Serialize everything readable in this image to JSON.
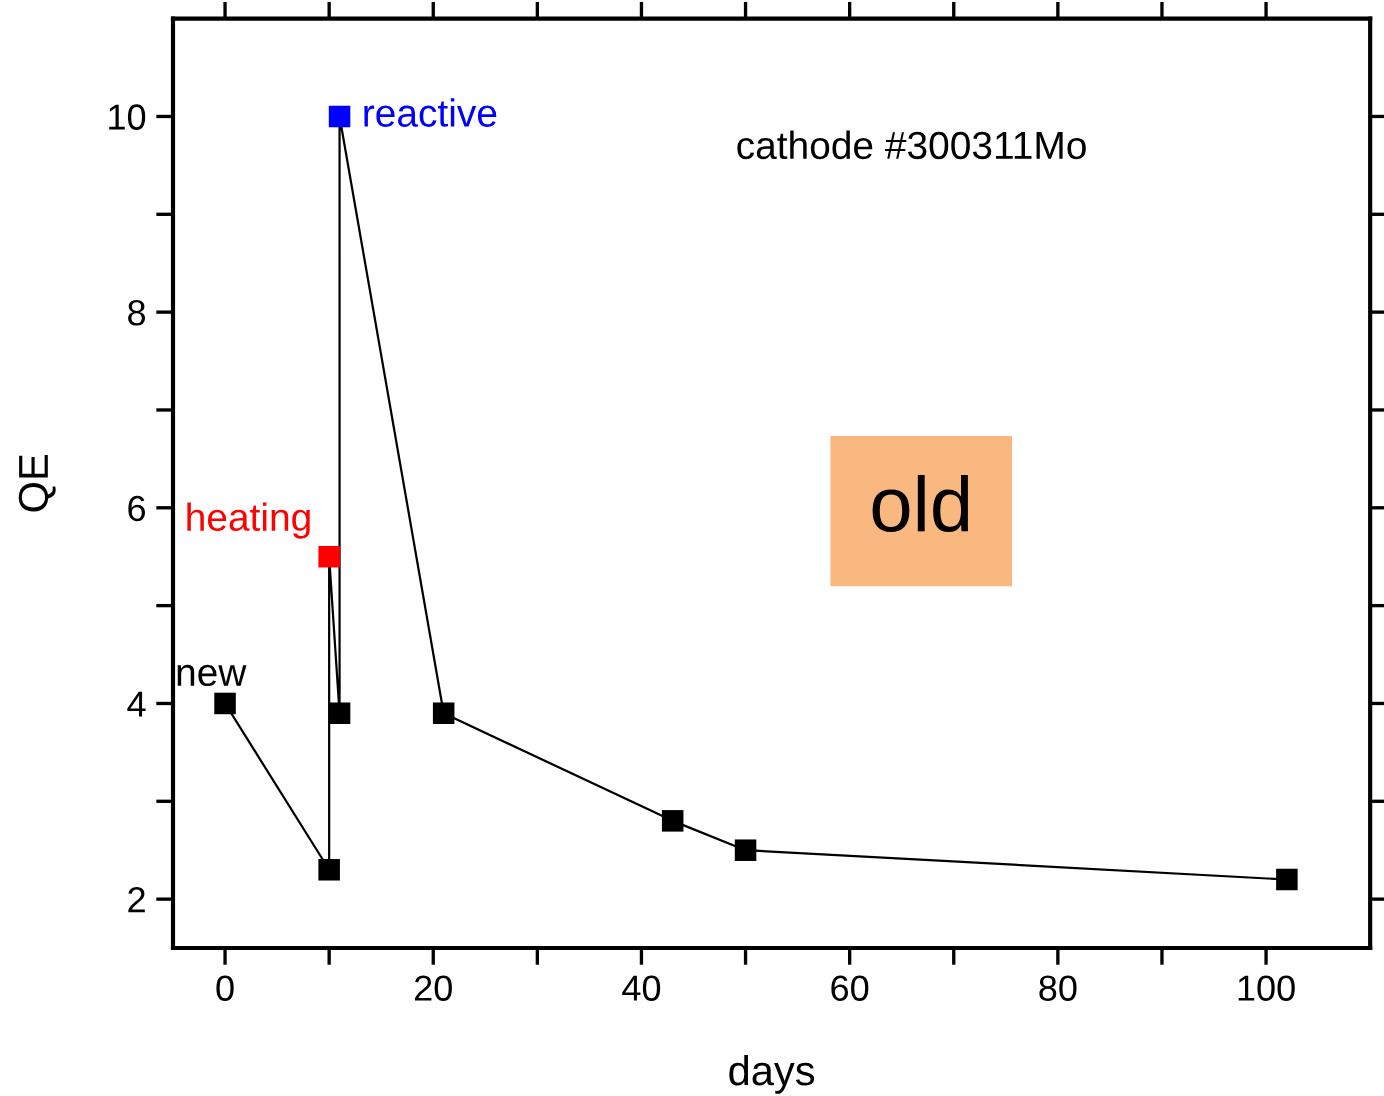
{
  "chart_data": {
    "type": "line",
    "xlabel": "days",
    "ylabel": "QE",
    "xlim": [
      -5,
      110
    ],
    "xticks": [
      0,
      {
        "value": 10,
        "label": null
      },
      20,
      {
        "value": 30,
        "label": null
      },
      40,
      {
        "value": 50,
        "label": null
      },
      60,
      {
        "value": 70,
        "label": null
      },
      80,
      {
        "value": 90,
        "label": null
      },
      100
    ],
    "ylim": [
      1.5,
      11
    ],
    "yticks": [
      2,
      {
        "value": 3,
        "label": null
      },
      4,
      {
        "value": 5,
        "label": null
      },
      6,
      {
        "value": 7,
        "label": null
      },
      8,
      {
        "value": 9,
        "label": null
      },
      10
    ],
    "marker": "square",
    "line_style": "solid",
    "grid": false,
    "legend": false,
    "series": [
      {
        "color": "#000000",
        "x": [
          0,
          10,
          10,
          11,
          11,
          21,
          43,
          50,
          102
        ],
        "values": [
          4,
          2.3,
          5.5,
          3.9,
          10,
          3.9,
          2.8,
          2.5,
          2.2
        ],
        "colors": [
          "#000000",
          "#000000",
          "#ff0000",
          "#000000",
          "#0000ff",
          "#000000",
          "#000000",
          "#000000",
          "#000000"
        ]
      }
    ],
    "annotations": [
      {
        "text": "new",
        "x": 0,
        "y": 4
      },
      {
        "text": "heating",
        "x": 10,
        "y": 5.5
      },
      {
        "text": "reactive",
        "x": 11,
        "y": 10
      },
      "cathode #300311Mo",
      "old"
    ]
  }
}
